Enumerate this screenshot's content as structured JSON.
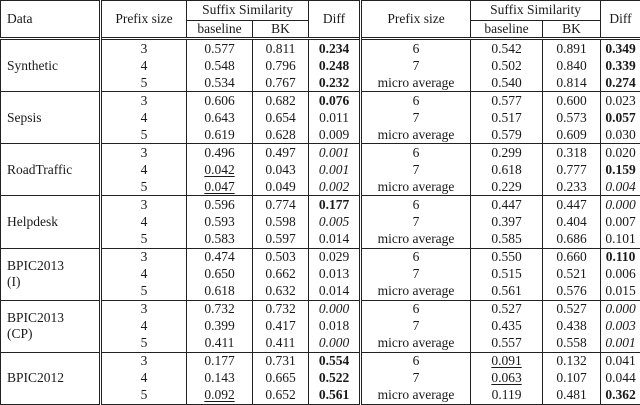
{
  "table": {
    "header": {
      "data_label": "Data",
      "prefix_size_label": "Prefix size",
      "suffix_similarity_label": "Suffix Similarity",
      "baseline_label": "baseline",
      "bk_label": "BK",
      "diff_label": "Diff"
    },
    "style_legend": {
      "b": "bold",
      "i": "italic",
      "u": "underline"
    },
    "groups": [
      {
        "dataset_lines": [
          "Synthetic"
        ],
        "rows": [
          [
            [
              "3",
              ""
            ],
            [
              "0.577",
              ""
            ],
            [
              "0.811",
              ""
            ],
            [
              "0.234",
              "b"
            ],
            [
              "6",
              ""
            ],
            [
              "0.542",
              ""
            ],
            [
              "0.891",
              ""
            ],
            [
              "0.349",
              "b"
            ]
          ],
          [
            [
              "4",
              ""
            ],
            [
              "0.548",
              ""
            ],
            [
              "0.796",
              ""
            ],
            [
              "0.248",
              "b"
            ],
            [
              "7",
              ""
            ],
            [
              "0.502",
              ""
            ],
            [
              "0.840",
              ""
            ],
            [
              "0.339",
              "b"
            ]
          ],
          [
            [
              "5",
              ""
            ],
            [
              "0.534",
              ""
            ],
            [
              "0.767",
              ""
            ],
            [
              "0.232",
              "b"
            ],
            [
              "micro average",
              ""
            ],
            [
              "0.540",
              ""
            ],
            [
              "0.814",
              ""
            ],
            [
              "0.274",
              "b"
            ]
          ]
        ]
      },
      {
        "dataset_lines": [
          "Sepsis"
        ],
        "rows": [
          [
            [
              "3",
              ""
            ],
            [
              "0.606",
              ""
            ],
            [
              "0.682",
              ""
            ],
            [
              "0.076",
              "b"
            ],
            [
              "6",
              ""
            ],
            [
              "0.577",
              ""
            ],
            [
              "0.600",
              ""
            ],
            [
              "0.023",
              ""
            ]
          ],
          [
            [
              "4",
              ""
            ],
            [
              "0.643",
              ""
            ],
            [
              "0.654",
              ""
            ],
            [
              "0.011",
              ""
            ],
            [
              "7",
              ""
            ],
            [
              "0.517",
              ""
            ],
            [
              "0.573",
              ""
            ],
            [
              "0.057",
              "b"
            ]
          ],
          [
            [
              "5",
              ""
            ],
            [
              "0.619",
              ""
            ],
            [
              "0.628",
              ""
            ],
            [
              "0.009",
              ""
            ],
            [
              "micro average",
              ""
            ],
            [
              "0.579",
              ""
            ],
            [
              "0.609",
              ""
            ],
            [
              "0.030",
              ""
            ]
          ]
        ]
      },
      {
        "dataset_lines": [
          "RoadTraffic"
        ],
        "rows": [
          [
            [
              "3",
              ""
            ],
            [
              "0.496",
              ""
            ],
            [
              "0.497",
              ""
            ],
            [
              "0.001",
              "i"
            ],
            [
              "6",
              ""
            ],
            [
              "0.299",
              ""
            ],
            [
              "0.318",
              ""
            ],
            [
              "0.020",
              ""
            ]
          ],
          [
            [
              "4",
              ""
            ],
            [
              "0.042",
              "u"
            ],
            [
              "0.043",
              ""
            ],
            [
              "0.001",
              "i"
            ],
            [
              "7",
              ""
            ],
            [
              "0.618",
              ""
            ],
            [
              "0.777",
              ""
            ],
            [
              "0.159",
              "b"
            ]
          ],
          [
            [
              "5",
              ""
            ],
            [
              "0.047",
              "u"
            ],
            [
              "0.049",
              ""
            ],
            [
              "0.002",
              "i"
            ],
            [
              "micro average",
              ""
            ],
            [
              "0.229",
              ""
            ],
            [
              "0.233",
              ""
            ],
            [
              "0.004",
              "i"
            ]
          ]
        ]
      },
      {
        "dataset_lines": [
          "Helpdesk"
        ],
        "rows": [
          [
            [
              "3",
              ""
            ],
            [
              "0.596",
              ""
            ],
            [
              "0.774",
              ""
            ],
            [
              "0.177",
              "b"
            ],
            [
              "6",
              ""
            ],
            [
              "0.447",
              ""
            ],
            [
              "0.447",
              ""
            ],
            [
              "0.000",
              "i"
            ]
          ],
          [
            [
              "4",
              ""
            ],
            [
              "0.593",
              ""
            ],
            [
              "0.598",
              ""
            ],
            [
              "0.005",
              "i"
            ],
            [
              "7",
              ""
            ],
            [
              "0.397",
              ""
            ],
            [
              "0.404",
              ""
            ],
            [
              "0.007",
              ""
            ]
          ],
          [
            [
              "5",
              ""
            ],
            [
              "0.583",
              ""
            ],
            [
              "0.597",
              ""
            ],
            [
              "0.014",
              ""
            ],
            [
              "micro average",
              ""
            ],
            [
              "0.585",
              ""
            ],
            [
              "0.686",
              ""
            ],
            [
              "0.101",
              ""
            ]
          ]
        ]
      },
      {
        "dataset_lines": [
          "BPIC2013",
          "(I)"
        ],
        "rows": [
          [
            [
              "3",
              ""
            ],
            [
              "0.474",
              ""
            ],
            [
              "0.503",
              ""
            ],
            [
              "0.029",
              ""
            ],
            [
              "6",
              ""
            ],
            [
              "0.550",
              ""
            ],
            [
              "0.660",
              ""
            ],
            [
              "0.110",
              "b"
            ]
          ],
          [
            [
              "4",
              ""
            ],
            [
              "0.650",
              ""
            ],
            [
              "0.662",
              ""
            ],
            [
              "0.013",
              ""
            ],
            [
              "7",
              ""
            ],
            [
              "0.515",
              ""
            ],
            [
              "0.521",
              ""
            ],
            [
              "0.006",
              ""
            ]
          ],
          [
            [
              "5",
              ""
            ],
            [
              "0.618",
              ""
            ],
            [
              "0.632",
              ""
            ],
            [
              "0.014",
              ""
            ],
            [
              "micro average",
              ""
            ],
            [
              "0.561",
              ""
            ],
            [
              "0.576",
              ""
            ],
            [
              "0.015",
              ""
            ]
          ]
        ]
      },
      {
        "dataset_lines": [
          "BPIC2013",
          "(CP)"
        ],
        "rows": [
          [
            [
              "3",
              ""
            ],
            [
              "0.732",
              ""
            ],
            [
              "0.732",
              ""
            ],
            [
              "0.000",
              "i"
            ],
            [
              "6",
              ""
            ],
            [
              "0.527",
              ""
            ],
            [
              "0.527",
              ""
            ],
            [
              "0.000",
              "i"
            ]
          ],
          [
            [
              "4",
              ""
            ],
            [
              "0.399",
              ""
            ],
            [
              "0.417",
              ""
            ],
            [
              "0.018",
              ""
            ],
            [
              "7",
              ""
            ],
            [
              "0.435",
              ""
            ],
            [
              "0.438",
              ""
            ],
            [
              "0.003",
              "i"
            ]
          ],
          [
            [
              "5",
              ""
            ],
            [
              "0.411",
              ""
            ],
            [
              "0.411",
              ""
            ],
            [
              "0.000",
              "i"
            ],
            [
              "micro average",
              ""
            ],
            [
              "0.557",
              ""
            ],
            [
              "0.558",
              ""
            ],
            [
              "0.001",
              "i"
            ]
          ]
        ]
      },
      {
        "dataset_lines": [
          "BPIC2012"
        ],
        "rows": [
          [
            [
              "3",
              ""
            ],
            [
              "0.177",
              ""
            ],
            [
              "0.731",
              ""
            ],
            [
              "0.554",
              "b"
            ],
            [
              "6",
              ""
            ],
            [
              "0.091",
              "u"
            ],
            [
              "0.132",
              ""
            ],
            [
              "0.041",
              ""
            ]
          ],
          [
            [
              "4",
              ""
            ],
            [
              "0.143",
              ""
            ],
            [
              "0.665",
              ""
            ],
            [
              "0.522",
              "b"
            ],
            [
              "7",
              ""
            ],
            [
              "0.063",
              "u"
            ],
            [
              "0.107",
              ""
            ],
            [
              "0.044",
              ""
            ]
          ],
          [
            [
              "5",
              ""
            ],
            [
              "0.092",
              "u"
            ],
            [
              "0.652",
              ""
            ],
            [
              "0.561",
              "b"
            ],
            [
              "micro average",
              ""
            ],
            [
              "0.119",
              ""
            ],
            [
              "0.481",
              ""
            ],
            [
              "0.362",
              "b"
            ]
          ]
        ]
      }
    ]
  },
  "colors": {
    "text": "#1a1a1a",
    "border": "#222222",
    "background": "#ffffff"
  }
}
